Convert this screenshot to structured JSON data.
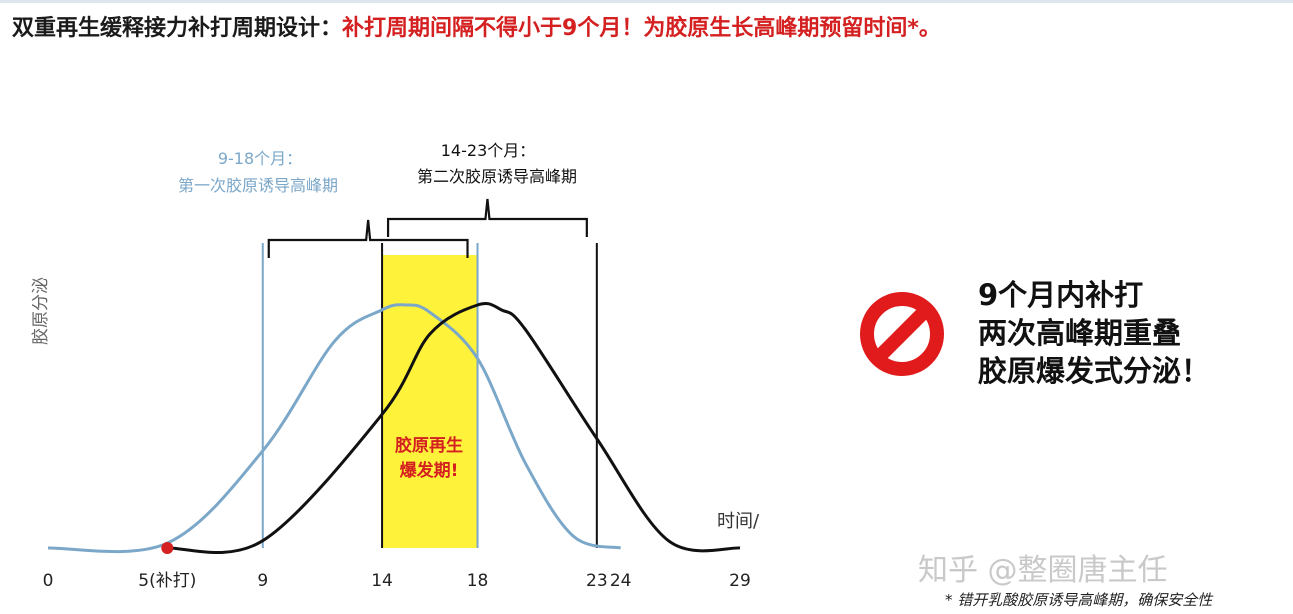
{
  "header": {
    "part1": "双重再生缓释接力补打周期设计：",
    "part2": "补打周期间隔不得小于9个月！为胶原生长高峰期预留时间*。"
  },
  "chart_data": {
    "type": "line",
    "x_axis": {
      "label": "时间/月",
      "ticks": [
        "0",
        "5(补打)",
        "9",
        "14",
        "18",
        "23",
        "24",
        "29"
      ],
      "tick_values": [
        0,
        5,
        9,
        14,
        18,
        23,
        24,
        29
      ],
      "range": [
        0,
        29
      ]
    },
    "y_axis": {
      "label": "胶原分泌"
    },
    "series": [
      {
        "color": "#7ba7c9",
        "x": [
          0,
          5,
          9,
          12,
          14,
          15,
          16,
          18,
          20,
          22,
          24
        ],
        "y": [
          0,
          0.02,
          0.4,
          0.85,
          0.98,
          1.0,
          0.97,
          0.78,
          0.35,
          0.05,
          0
        ]
      },
      {
        "color": "#111111",
        "x": [
          5,
          9,
          14,
          16,
          18,
          19,
          20,
          23,
          26,
          29
        ],
        "y": [
          0,
          0.03,
          0.55,
          0.88,
          1.0,
          0.98,
          0.9,
          0.45,
          0.03,
          0
        ]
      }
    ],
    "reference_lines": [
      {
        "x": 9,
        "color": "#7ba7c9"
      },
      {
        "x": 18,
        "color": "#7ba7c9"
      },
      {
        "x": 14,
        "color": "#111111"
      },
      {
        "x": 23,
        "color": "#111111"
      }
    ],
    "highlight": {
      "x_from": 14,
      "x_to": 18,
      "color": "#fff23a",
      "label_line1": "胶原再生",
      "label_line2": "爆发期!",
      "label_color": "#d42020"
    },
    "marker": {
      "x": 5,
      "y": 0,
      "color": "#d42020"
    },
    "annotations": [
      {
        "line1": "9-18个月：",
        "line2": "第一次胶原诱导高峰期",
        "x_from": 9,
        "x_to": 18,
        "color": "#7ba7c9"
      },
      {
        "line1": "14-23个月：",
        "line2": "第二次胶原诱导高峰期",
        "x_from": 14,
        "x_to": 23,
        "color": "#111111"
      }
    ]
  },
  "message": {
    "line1": "9个月内补打",
    "line2": "两次高峰期重叠",
    "line3": "胶原爆发式分泌！"
  },
  "prohibit_icon": {
    "color": "#e11b1b"
  },
  "watermark": "知乎 @整圈唐主任",
  "footnote": "* 错开乳酸胶原诱导高峰期，确保安全性"
}
